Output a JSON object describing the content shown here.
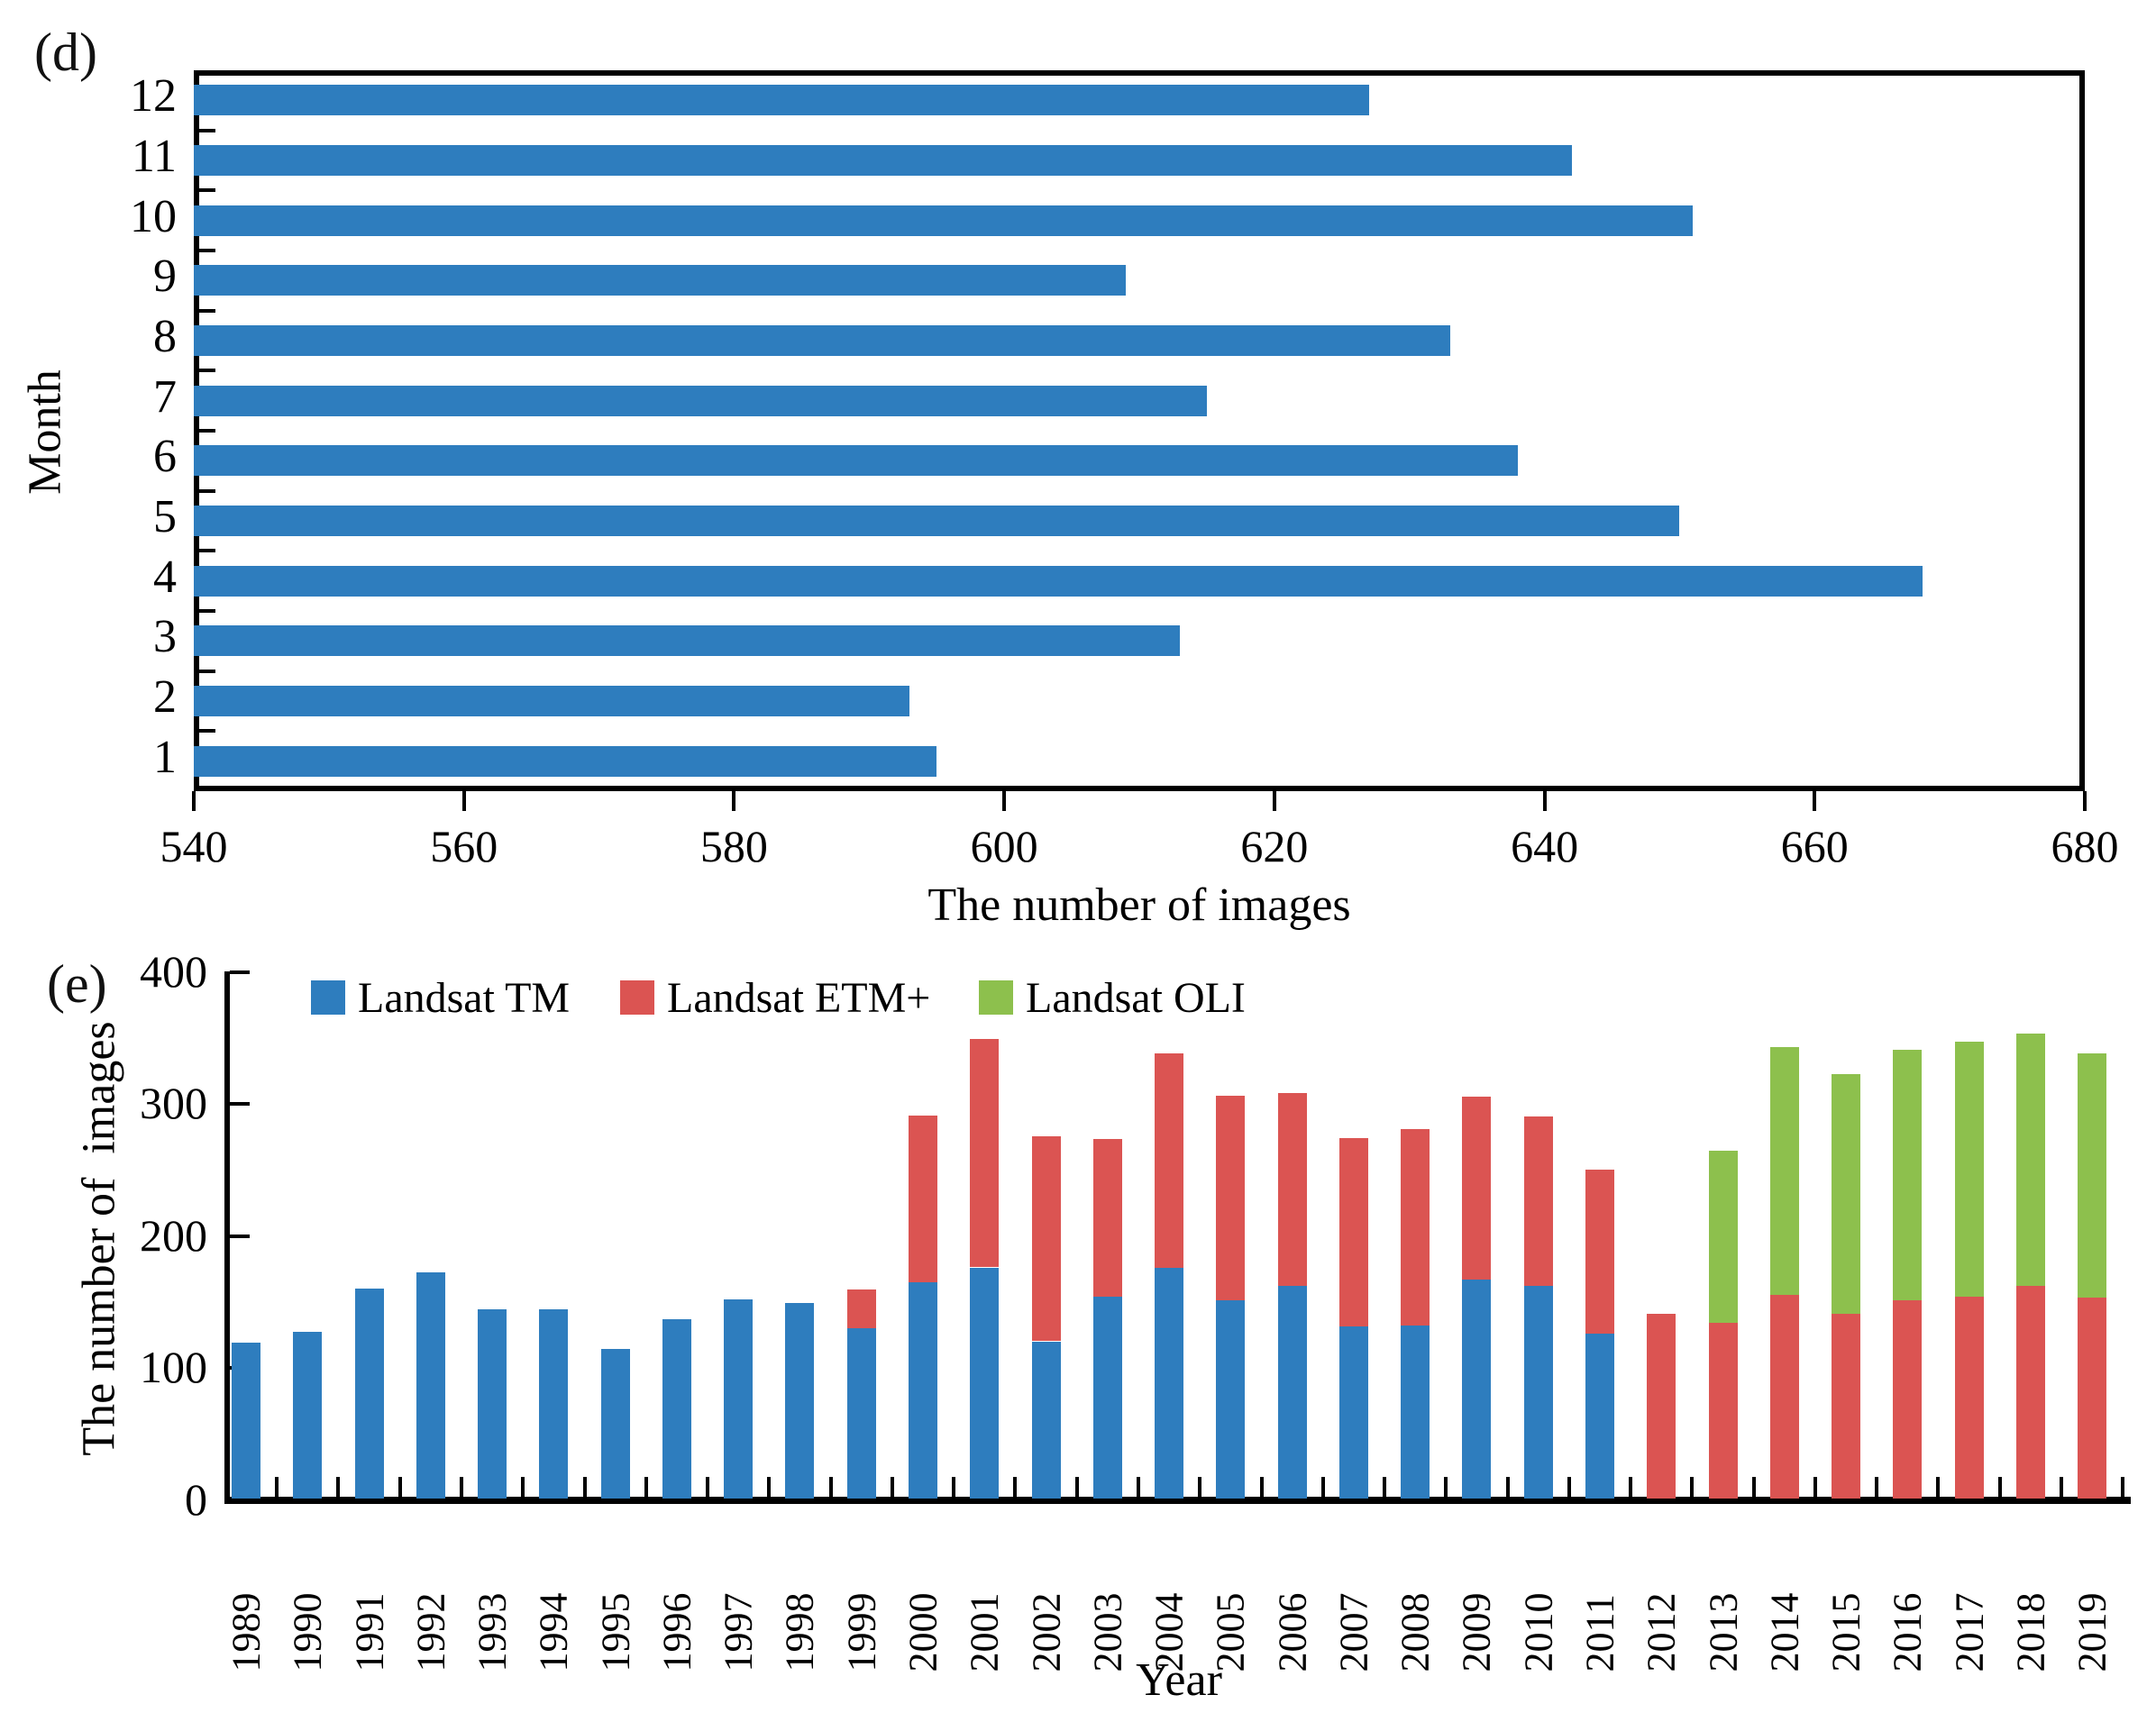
{
  "colors": {
    "tm_blue": "#2E7DBE",
    "etm_red": "#DB5452",
    "oli_green": "#8DC04D",
    "axis_black": "#000000",
    "background": "#FFFFFF"
  },
  "chart_data": [
    {
      "id": "d",
      "type": "bar",
      "orientation": "horizontal",
      "panel_label": "(d)",
      "title": "",
      "xlabel": "The number of images",
      "ylabel": "Month",
      "categories": [
        "1",
        "2",
        "3",
        "4",
        "5",
        "6",
        "7",
        "8",
        "9",
        "10",
        "11",
        "12"
      ],
      "values": [
        595,
        593,
        613,
        668,
        650,
        638,
        615,
        633,
        609,
        651,
        642,
        627
      ],
      "xlim": [
        540,
        680
      ],
      "xticks": [
        540,
        560,
        580,
        600,
        620,
        640,
        660,
        680
      ],
      "bar_color": "#2E7DBE",
      "grid": false,
      "plot_border": true,
      "legend_position": "none"
    },
    {
      "id": "e",
      "type": "bar",
      "stacked": true,
      "orientation": "vertical",
      "panel_label": "(e)",
      "title": "",
      "xlabel": "Year",
      "ylabel": "The number of  images",
      "categories": [
        1989,
        1990,
        1991,
        1992,
        1993,
        1994,
        1995,
        1996,
        1997,
        1998,
        1999,
        2000,
        2001,
        2002,
        2003,
        2004,
        2005,
        2006,
        2007,
        2008,
        2009,
        2010,
        2011,
        2012,
        2013,
        2014,
        2015,
        2016,
        2017,
        2018,
        2019
      ],
      "series": [
        {
          "name": "Landsat TM",
          "color": "#2E7DBE",
          "values": [
            118,
            126,
            159,
            171,
            143,
            143,
            113,
            136,
            151,
            148,
            129,
            164,
            175,
            119,
            153,
            175,
            150,
            161,
            130,
            131,
            166,
            161,
            125,
            0,
            0,
            0,
            0,
            0,
            0,
            0,
            0
          ]
        },
        {
          "name": "Landsat ETM+",
          "color": "#DB5452",
          "values": [
            0,
            0,
            0,
            0,
            0,
            0,
            0,
            0,
            0,
            0,
            29,
            126,
            173,
            155,
            119,
            162,
            155,
            146,
            143,
            149,
            138,
            128,
            124,
            140,
            133,
            154,
            140,
            150,
            153,
            161,
            152
          ]
        },
        {
          "name": "Landsat OLI",
          "color": "#8DC04D",
          "values": [
            0,
            0,
            0,
            0,
            0,
            0,
            0,
            0,
            0,
            0,
            0,
            0,
            0,
            0,
            0,
            0,
            0,
            0,
            0,
            0,
            0,
            0,
            0,
            0,
            130,
            188,
            181,
            190,
            193,
            191,
            185
          ]
        }
      ],
      "ylim": [
        0,
        400
      ],
      "yticks": [
        0,
        100,
        200,
        300,
        400
      ],
      "grid": false,
      "plot_border": false,
      "legend_position": "top-left"
    }
  ]
}
